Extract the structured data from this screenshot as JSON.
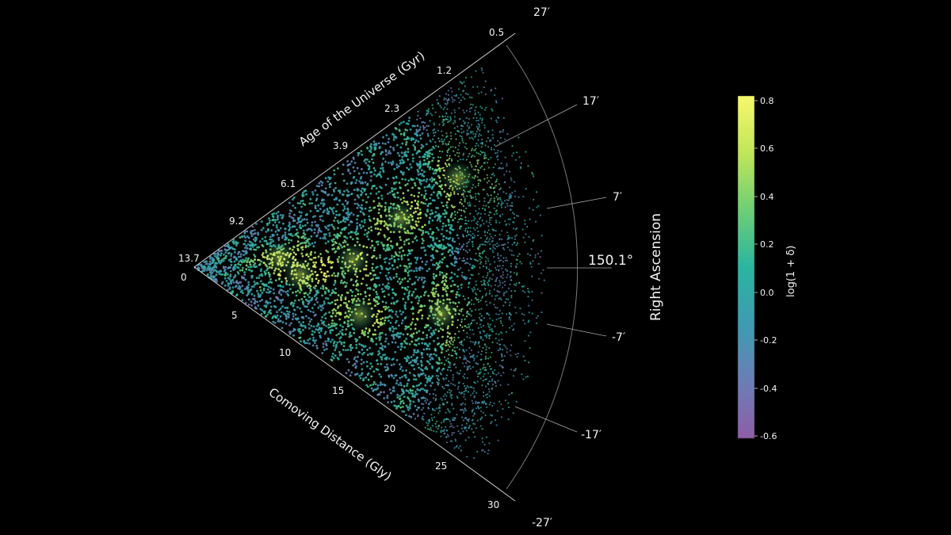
{
  "chart_data": {
    "type": "scatter",
    "projection": "wedge",
    "distance_axis": {
      "label": "Comoving Distance (Gly)",
      "range": [
        0,
        30
      ],
      "ticks": [
        0,
        5,
        10,
        15,
        20,
        25,
        30
      ]
    },
    "age_axis": {
      "label": "Age of the Universe (Gyr)",
      "tick_labels": [
        "13.7",
        "9.2",
        "6.1",
        "3.9",
        "2.3",
        "1.2",
        "0.5"
      ]
    },
    "ra_axis": {
      "label": "Right Ascension",
      "center_label": "150.1°",
      "range_arcmin": [
        -27,
        27
      ],
      "tick_labels": [
        "27′",
        "17′",
        "7′",
        "-7′",
        "-17′",
        "-27′"
      ]
    },
    "colorbar": {
      "label": "log(1 + δ)",
      "range": [
        -0.6,
        0.8
      ],
      "tick_labels": [
        "0.8",
        "0.6",
        "0.4",
        "0.2",
        "0.0",
        "-0.2",
        "-0.4",
        "-0.6"
      ],
      "colormap": "viridis"
    },
    "density_overdensities": [
      {
        "distance": 6.5,
        "ra_arcmin": 5,
        "value": 0.8
      },
      {
        "distance": 8,
        "ra_arcmin": -3,
        "value": 0.75
      },
      {
        "distance": 12,
        "ra_arcmin": 2,
        "value": 0.65
      },
      {
        "distance": 13,
        "ra_arcmin": -12,
        "value": 0.6
      },
      {
        "distance": 16,
        "ra_arcmin": 10,
        "value": 0.55
      },
      {
        "distance": 19,
        "ra_arcmin": -8,
        "value": 0.5
      },
      {
        "distance": 21,
        "ra_arcmin": 14,
        "value": 0.45
      }
    ]
  },
  "colors": {
    "background": "#000000",
    "axis_line": "#cfcfcf",
    "colormap_stops": [
      "#8e5ea8",
      "#6a7fb5",
      "#3e9bb2",
      "#2bb5a0",
      "#6fcf74",
      "#bfe55a",
      "#f8f86a"
    ]
  }
}
